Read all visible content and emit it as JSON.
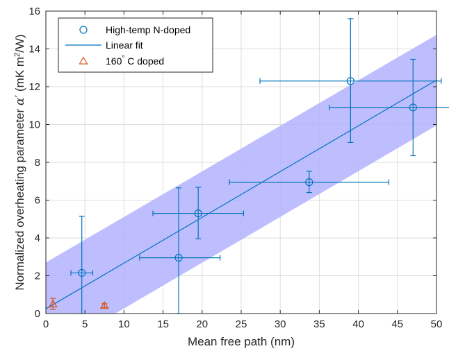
{
  "chart_data": {
    "type": "scatter",
    "xlabel": "Mean free path (nm)",
    "ylabel": "Normalized overheating parameter α′ (mK m²/W)",
    "xlim": [
      0,
      50
    ],
    "ylim": [
      0,
      16
    ],
    "xticks": [
      0,
      5,
      10,
      15,
      20,
      25,
      30,
      35,
      40,
      45,
      50
    ],
    "yticks": [
      0,
      2,
      4,
      6,
      8,
      10,
      12,
      14,
      16
    ],
    "grid": true,
    "legend_position": "top-left",
    "colors": {
      "main": "#0072BD",
      "secondary": "#D95319",
      "band": "#B3B3FF"
    },
    "series": [
      {
        "name": "High-temp N-doped",
        "marker": "circle",
        "points": [
          {
            "x": 4.6,
            "y": 2.15,
            "xerr": [
              1.4,
              1.4
            ],
            "yerr": [
              2.15,
              3.0
            ]
          },
          {
            "x": 17.0,
            "y": 2.95,
            "xerr": [
              5.0,
              5.3
            ],
            "yerr": [
              2.95,
              3.7
            ]
          },
          {
            "x": 19.5,
            "y": 5.3,
            "xerr": [
              5.8,
              5.8
            ],
            "yerr": [
              1.35,
              1.38
            ]
          },
          {
            "x": 33.7,
            "y": 6.95,
            "xerr": [
              10.2,
              10.2
            ],
            "yerr": [
              0.55,
              0.58
            ]
          },
          {
            "x": 39.0,
            "y": 12.3,
            "xerr": [
              11.6,
              11.6
            ],
            "yerr": [
              3.25,
              3.3
            ]
          },
          {
            "x": 47.0,
            "y": 10.9,
            "xerr": [
              10.7,
              10.7
            ],
            "yerr": [
              2.55,
              2.55
            ]
          }
        ]
      },
      {
        "name": "Linear fit",
        "type": "line",
        "x": [
          0,
          50
        ],
        "y": [
          0.25,
          12.35
        ],
        "band_upper": [
          2.7,
          14.75
        ],
        "band_lower": [
          -2.15,
          9.95
        ]
      },
      {
        "name": "160° C doped",
        "marker": "triangle",
        "points": [
          {
            "x": 0.9,
            "y": 0.5,
            "yerr": [
              0.28,
              0.3
            ]
          },
          {
            "x": 7.5,
            "y": 0.42,
            "yerr": [
              0.1,
              0.1
            ]
          }
        ]
      }
    ]
  },
  "legend": {
    "items": [
      {
        "label": "High-temp N-doped"
      },
      {
        "label": "Linear fit"
      },
      {
        "label_main": "160",
        "label_sup": "°",
        "label_rest": " C doped"
      }
    ]
  },
  "ylabel_parts": {
    "main": "Normalized overheating parameter ",
    "alpha": "α′",
    "unit_open": " (mK m",
    "unit_sup": "2",
    "unit_close": "/W)"
  }
}
